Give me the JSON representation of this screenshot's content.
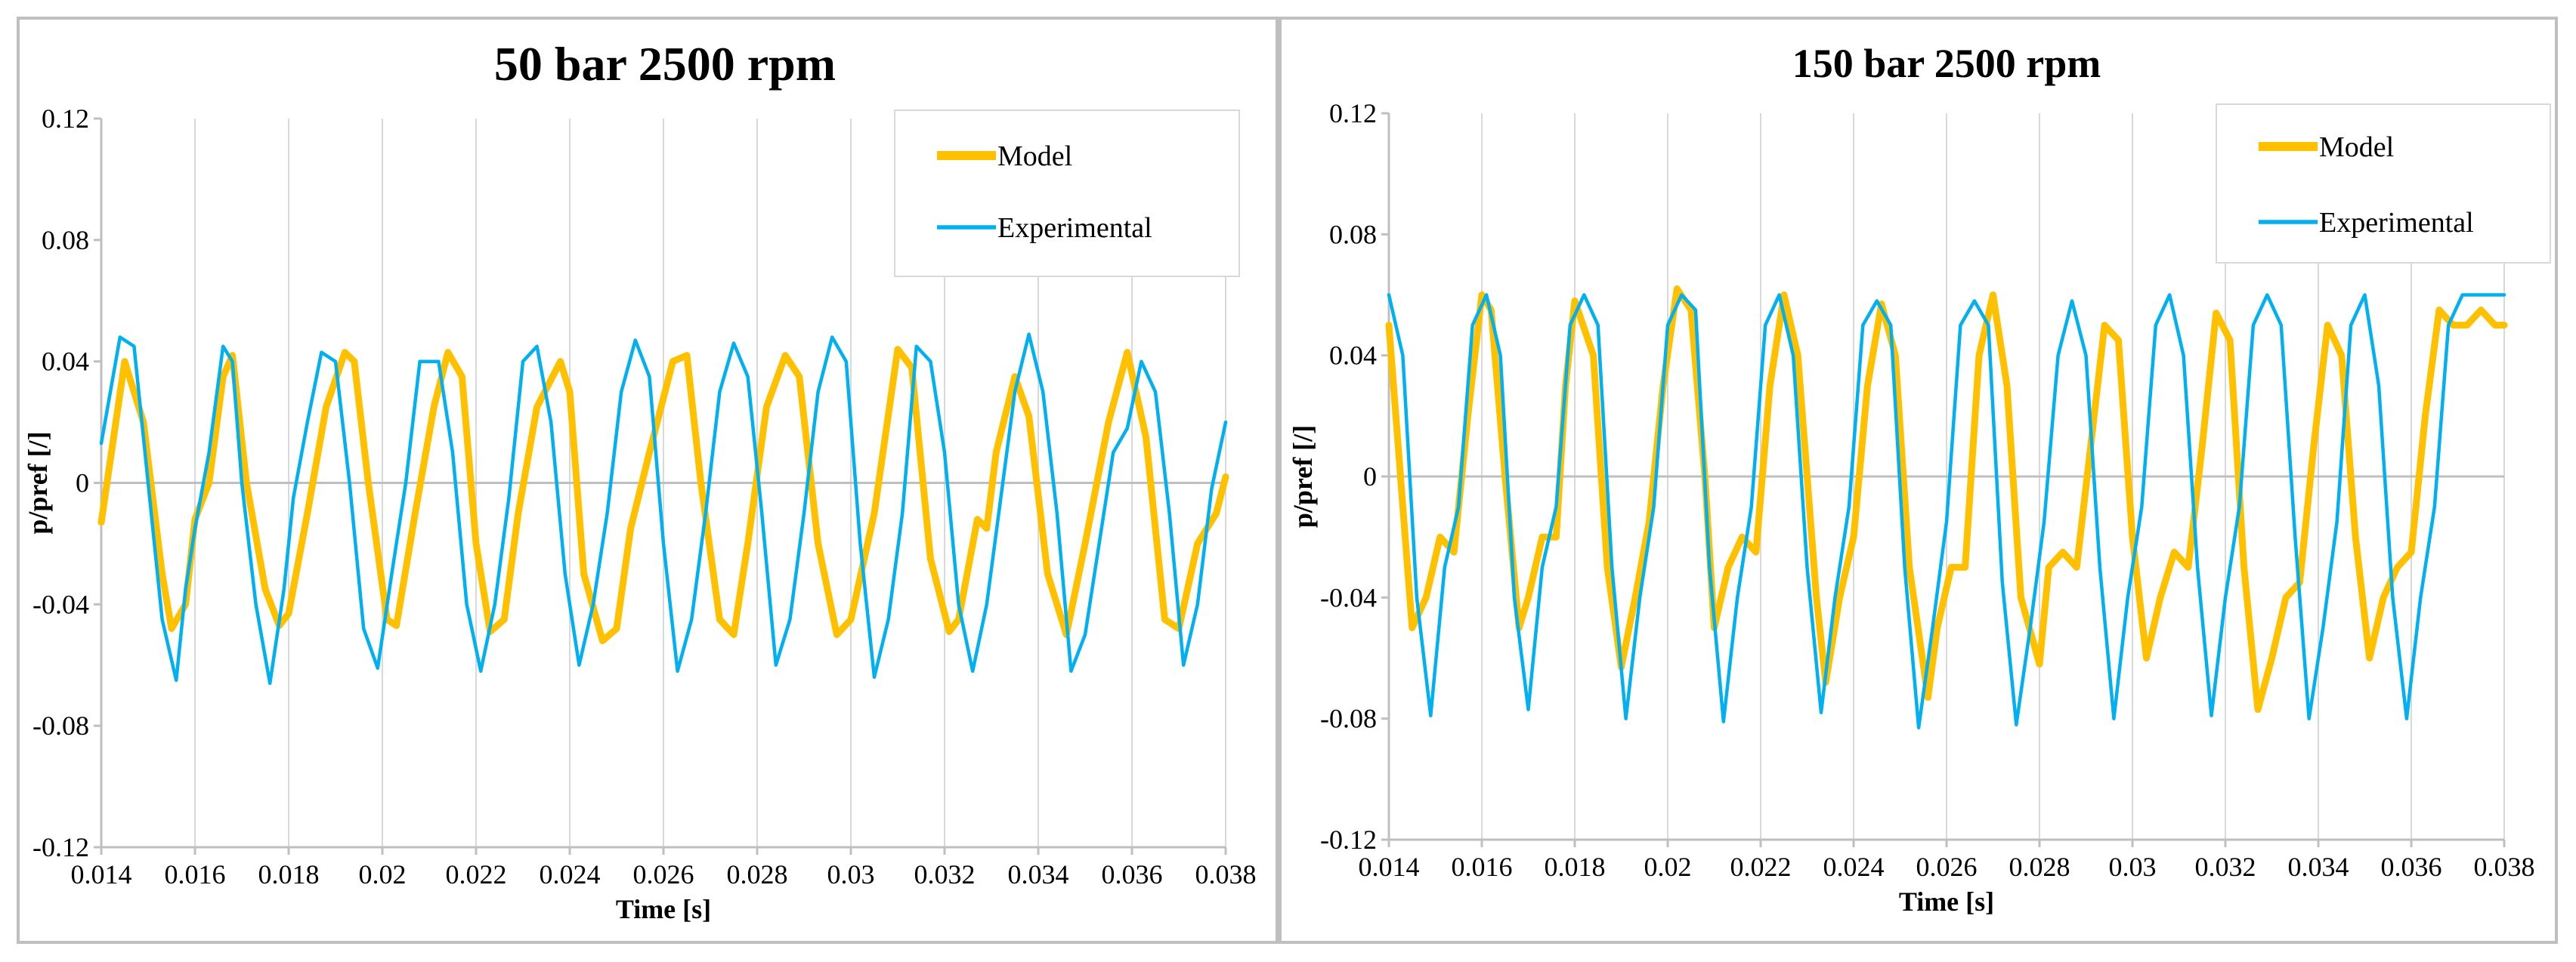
{
  "colors": {
    "model": "#FFC000",
    "experimental": "#00B0F0",
    "grid": "#d9d9d9",
    "border": "#bfbfbf"
  },
  "chart_data": [
    {
      "type": "line",
      "title": "50 bar 2500 rpm",
      "xlabel": "Time [s]",
      "ylabel": "p/pref [/]",
      "xlim": [
        0.014,
        0.038
      ],
      "ylim": [
        -0.12,
        0.12
      ],
      "xticks": [
        0.014,
        0.016,
        0.018,
        0.02,
        0.022,
        0.024,
        0.026,
        0.028,
        0.03,
        0.032,
        0.034,
        0.036,
        0.038
      ],
      "xtick_labels": [
        "0.014",
        "0.016",
        "0.018",
        "0.02",
        "0.022",
        "0.024",
        "0.026",
        "0.028",
        "0.03",
        "0.032",
        "0.034",
        "0.036",
        "0.038"
      ],
      "yticks": [
        0.12,
        0.08,
        0.04,
        0,
        -0.04,
        -0.08,
        -0.12
      ],
      "ytick_labels": [
        "0.12",
        "0.08",
        "0.04",
        "0",
        "-0.04",
        "-0.08",
        "-0.12"
      ],
      "grid": "vertical",
      "legend_position": "top-right",
      "series": [
        {
          "name": "Model",
          "x": [
            0.014,
            0.0145,
            0.0149,
            0.0153,
            0.0155,
            0.0158,
            0.016,
            0.0163,
            0.0166,
            0.0168,
            0.0171,
            0.0175,
            0.0178,
            0.018,
            0.0184,
            0.0188,
            0.0192,
            0.0194,
            0.0197,
            0.0201,
            0.0203,
            0.0207,
            0.0211,
            0.0214,
            0.0217,
            0.022,
            0.0223,
            0.0226,
            0.0229,
            0.0233,
            0.0238,
            0.024,
            0.0243,
            0.0247,
            0.025,
            0.0253,
            0.0257,
            0.0262,
            0.0265,
            0.0268,
            0.0272,
            0.0275,
            0.0278,
            0.0282,
            0.0286,
            0.0289,
            0.0293,
            0.0297,
            0.03,
            0.0305,
            0.031,
            0.0313,
            0.0317,
            0.0321,
            0.0323,
            0.0327,
            0.0329,
            0.0331,
            0.0335,
            0.0338,
            0.0342,
            0.0346,
            0.035,
            0.0355,
            0.0359,
            0.0363,
            0.0367,
            0.037,
            0.0374,
            0.0378,
            0.038
          ],
          "y": [
            -0.013,
            0.04,
            0.02,
            -0.03,
            -0.048,
            -0.04,
            -0.012,
            0.0,
            0.035,
            0.042,
            0.0,
            -0.035,
            -0.047,
            -0.043,
            -0.01,
            0.025,
            0.043,
            0.04,
            0.0,
            -0.045,
            -0.047,
            -0.01,
            0.025,
            0.043,
            0.035,
            -0.02,
            -0.049,
            -0.045,
            -0.01,
            0.025,
            0.04,
            0.03,
            -0.03,
            -0.052,
            -0.048,
            -0.015,
            0.01,
            0.04,
            0.042,
            0.0,
            -0.045,
            -0.05,
            -0.02,
            0.025,
            0.042,
            0.035,
            -0.02,
            -0.05,
            -0.045,
            -0.01,
            0.044,
            0.038,
            -0.025,
            -0.049,
            -0.045,
            -0.012,
            -0.015,
            0.01,
            0.035,
            0.022,
            -0.03,
            -0.05,
            -0.02,
            0.02,
            0.043,
            0.015,
            -0.045,
            -0.048,
            -0.02,
            -0.01,
            0.002
          ]
        },
        {
          "name": "Experimental",
          "x": [
            0.014,
            0.0144,
            0.0147,
            0.015,
            0.0153,
            0.0156,
            0.0158,
            0.016,
            0.0163,
            0.0166,
            0.0168,
            0.017,
            0.0173,
            0.0176,
            0.0179,
            0.0181,
            0.0184,
            0.0187,
            0.019,
            0.0193,
            0.0196,
            0.0199,
            0.0202,
            0.0205,
            0.0208,
            0.0212,
            0.0215,
            0.0218,
            0.0221,
            0.0224,
            0.0227,
            0.023,
            0.0233,
            0.0236,
            0.0239,
            0.0242,
            0.0245,
            0.0248,
            0.0251,
            0.0254,
            0.0257,
            0.026,
            0.0263,
            0.0266,
            0.0269,
            0.0272,
            0.0275,
            0.0278,
            0.0281,
            0.0284,
            0.0287,
            0.029,
            0.0293,
            0.0296,
            0.0299,
            0.0302,
            0.0305,
            0.0308,
            0.0311,
            0.0314,
            0.0317,
            0.032,
            0.0323,
            0.0326,
            0.0329,
            0.0332,
            0.0335,
            0.0338,
            0.0341,
            0.0344,
            0.0347,
            0.035,
            0.0353,
            0.0356,
            0.0359,
            0.0362,
            0.0365,
            0.0368,
            0.0371,
            0.0374,
            0.0377,
            0.038
          ],
          "y": [
            0.013,
            0.048,
            0.045,
            0.0,
            -0.045,
            -0.065,
            -0.035,
            -0.015,
            0.01,
            0.045,
            0.04,
            0.0,
            -0.04,
            -0.066,
            -0.035,
            -0.005,
            0.02,
            0.043,
            0.04,
            0.0,
            -0.048,
            -0.061,
            -0.03,
            0.0,
            0.04,
            0.04,
            0.01,
            -0.04,
            -0.062,
            -0.04,
            -0.005,
            0.04,
            0.045,
            0.02,
            -0.03,
            -0.06,
            -0.04,
            -0.01,
            0.03,
            0.047,
            0.035,
            -0.02,
            -0.062,
            -0.045,
            -0.01,
            0.03,
            0.046,
            0.035,
            -0.01,
            -0.06,
            -0.045,
            -0.01,
            0.03,
            0.048,
            0.04,
            -0.02,
            -0.064,
            -0.045,
            -0.01,
            0.045,
            0.04,
            0.01,
            -0.04,
            -0.062,
            -0.04,
            -0.005,
            0.03,
            0.049,
            0.03,
            -0.01,
            -0.062,
            -0.05,
            -0.02,
            0.01,
            0.018,
            0.04,
            0.03,
            -0.01,
            -0.06,
            -0.04,
            -0.002,
            0.02
          ]
        }
      ]
    },
    {
      "type": "line",
      "title": "150 bar 2500 rpm",
      "xlabel": "Time [s]",
      "ylabel": "p/pref [/]",
      "xlim": [
        0.014,
        0.038
      ],
      "ylim": [
        -0.12,
        0.12
      ],
      "xticks": [
        0.014,
        0.016,
        0.018,
        0.02,
        0.022,
        0.024,
        0.026,
        0.028,
        0.03,
        0.032,
        0.034,
        0.036,
        0.038
      ],
      "xtick_labels": [
        "0.014",
        "0.016",
        "0.018",
        "0.02",
        "0.022",
        "0.024",
        "0.026",
        "0.028",
        "0.03",
        "0.032",
        "0.034",
        "0.036",
        "0.038"
      ],
      "yticks": [
        0.12,
        0.08,
        0.04,
        0,
        -0.04,
        -0.08,
        -0.12
      ],
      "ytick_labels": [
        "0.12",
        "0.08",
        "0.04",
        "0",
        "-0.04",
        "-0.08",
        "-0.12"
      ],
      "grid": "vertical",
      "legend_position": "top-right",
      "series": [
        {
          "name": "Model",
          "x": [
            0.014,
            0.0145,
            0.0148,
            0.0151,
            0.0154,
            0.0157,
            0.016,
            0.0162,
            0.0165,
            0.0168,
            0.017,
            0.0173,
            0.0176,
            0.0178,
            0.018,
            0.0184,
            0.0187,
            0.019,
            0.0193,
            0.0196,
            0.0199,
            0.0202,
            0.0205,
            0.0208,
            0.021,
            0.0213,
            0.0216,
            0.0219,
            0.0222,
            0.0225,
            0.0228,
            0.0232,
            0.0234,
            0.0237,
            0.024,
            0.0243,
            0.0246,
            0.0249,
            0.0252,
            0.0256,
            0.0258,
            0.0261,
            0.0264,
            0.0267,
            0.027,
            0.0273,
            0.0276,
            0.028,
            0.0282,
            0.0285,
            0.0288,
            0.0291,
            0.0294,
            0.0297,
            0.03,
            0.0303,
            0.0306,
            0.0309,
            0.0312,
            0.0315,
            0.0318,
            0.0321,
            0.0324,
            0.0327,
            0.033,
            0.0333,
            0.0336,
            0.0339,
            0.0342,
            0.0345,
            0.0348,
            0.0351,
            0.0354,
            0.0357,
            0.036,
            0.0363,
            0.0366,
            0.0369,
            0.0372,
            0.0375,
            0.0378,
            0.038
          ],
          "y": [
            0.05,
            -0.05,
            -0.04,
            -0.02,
            -0.025,
            0.02,
            0.06,
            0.055,
            0.0,
            -0.05,
            -0.04,
            -0.02,
            -0.02,
            0.03,
            0.058,
            0.04,
            -0.03,
            -0.063,
            -0.04,
            -0.015,
            0.03,
            0.062,
            0.055,
            0.0,
            -0.05,
            -0.03,
            -0.02,
            -0.025,
            0.03,
            0.06,
            0.04,
            -0.04,
            -0.068,
            -0.04,
            -0.02,
            0.03,
            0.057,
            0.04,
            -0.03,
            -0.073,
            -0.05,
            -0.03,
            -0.03,
            0.04,
            0.06,
            0.03,
            -0.04,
            -0.062,
            -0.03,
            -0.025,
            -0.03,
            0.01,
            0.05,
            0.045,
            -0.02,
            -0.06,
            -0.04,
            -0.025,
            -0.03,
            0.01,
            0.054,
            0.045,
            -0.03,
            -0.077,
            -0.06,
            -0.04,
            -0.035,
            0.01,
            0.05,
            0.04,
            -0.02,
            -0.06,
            -0.04,
            -0.03,
            -0.025,
            0.02,
            0.055,
            0.05,
            0.05,
            0.055,
            0.05,
            0.05
          ]
        },
        {
          "name": "Experimental",
          "x": [
            0.014,
            0.0143,
            0.0146,
            0.0149,
            0.0152,
            0.0155,
            0.0158,
            0.0161,
            0.0164,
            0.0167,
            0.017,
            0.0173,
            0.0176,
            0.0179,
            0.0182,
            0.0185,
            0.0188,
            0.0191,
            0.0194,
            0.0197,
            0.02,
            0.0203,
            0.0206,
            0.0209,
            0.0212,
            0.0215,
            0.0218,
            0.0221,
            0.0224,
            0.0227,
            0.023,
            0.0233,
            0.0236,
            0.0239,
            0.0242,
            0.0245,
            0.0248,
            0.0251,
            0.0254,
            0.0257,
            0.026,
            0.0263,
            0.0266,
            0.0269,
            0.0272,
            0.0275,
            0.0278,
            0.0281,
            0.0284,
            0.0287,
            0.029,
            0.0293,
            0.0296,
            0.0299,
            0.0302,
            0.0305,
            0.0308,
            0.0311,
            0.0314,
            0.0317,
            0.032,
            0.0323,
            0.0326,
            0.0329,
            0.0332,
            0.0335,
            0.0338,
            0.0341,
            0.0344,
            0.0347,
            0.035,
            0.0353,
            0.0356,
            0.0359,
            0.0362,
            0.0365,
            0.0368,
            0.0371,
            0.0374,
            0.0377,
            0.038
          ],
          "y": [
            0.06,
            0.04,
            -0.04,
            -0.079,
            -0.03,
            -0.01,
            0.05,
            0.06,
            0.04,
            -0.04,
            -0.077,
            -0.03,
            -0.01,
            0.05,
            0.06,
            0.05,
            -0.03,
            -0.08,
            -0.04,
            -0.01,
            0.05,
            0.06,
            0.055,
            -0.03,
            -0.081,
            -0.04,
            -0.01,
            0.05,
            0.06,
            0.04,
            -0.03,
            -0.078,
            -0.04,
            -0.01,
            0.05,
            0.058,
            0.05,
            -0.03,
            -0.083,
            -0.05,
            -0.015,
            0.05,
            0.058,
            0.05,
            -0.035,
            -0.082,
            -0.05,
            -0.015,
            0.04,
            0.058,
            0.04,
            -0.03,
            -0.08,
            -0.04,
            -0.01,
            0.05,
            0.06,
            0.04,
            -0.03,
            -0.079,
            -0.04,
            -0.01,
            0.05,
            0.06,
            0.05,
            -0.02,
            -0.08,
            -0.05,
            -0.015,
            0.05,
            0.06,
            0.03,
            -0.04,
            -0.08,
            -0.04,
            -0.01,
            0.05,
            0.06,
            0.06,
            0.06,
            0.06
          ]
        }
      ]
    }
  ]
}
